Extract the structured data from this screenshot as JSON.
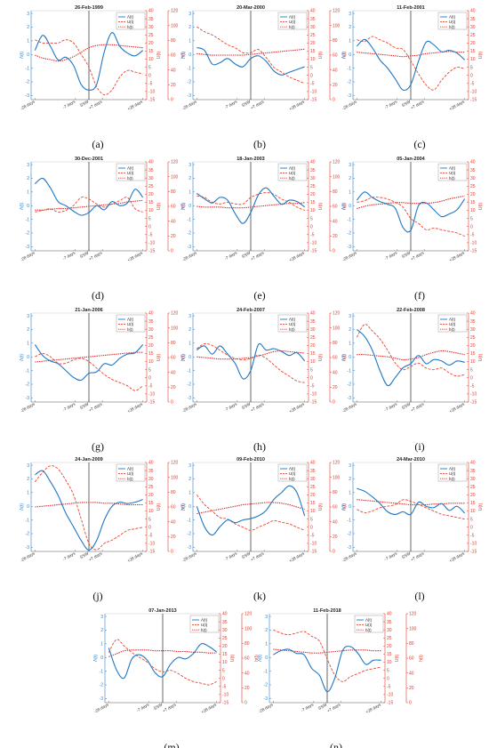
{
  "legend": {
    "a_label": "Λ(t)",
    "u_label": "U(t)",
    "h_label": "h(t)"
  },
  "axes": {
    "left_ylabel": "Λ(t)",
    "right1_ylabel": "U(t)",
    "right2_ylabel": "h(t)",
    "left_ticks": [
      -3,
      -2,
      -1,
      0,
      1,
      2,
      3
    ],
    "right1_ticks": [
      -15,
      -10,
      -5,
      0,
      5,
      10,
      15,
      20,
      25,
      30,
      35,
      40
    ],
    "right2_ticks": [
      0,
      20,
      40,
      60,
      80,
      100,
      120
    ],
    "x_tick_labels": [
      "-28 days",
      "-7 days",
      "SSW",
      "+7 days",
      "+28 days"
    ]
  },
  "colors": {
    "lambda": "#1f77c4",
    "u": "#e8452e",
    "h": "#d62728",
    "event_line": "#444444"
  },
  "chart_data": [
    {
      "type": "line",
      "caption": "(a)",
      "title": "26-Feb-1999",
      "x": [
        -28,
        -24,
        -20,
        -16,
        -12,
        -8,
        -4,
        0,
        4,
        8,
        12,
        16,
        20,
        24,
        28
      ],
      "series": [
        {
          "name": "Λ(t)",
          "values": [
            0.3,
            1.4,
            0.6,
            -0.4,
            -0.2,
            -0.8,
            -2.2,
            -2.6,
            -2.2,
            0.2,
            1.6,
            0.6,
            0.1,
            -0.1,
            0.3
          ]
        },
        {
          "name": "U(t)",
          "values": [
            22,
            20,
            20,
            20,
            22,
            20,
            13,
            5,
            -7,
            -12,
            -9,
            -1,
            3,
            2,
            1
          ]
        },
        {
          "name": "h(t)",
          "values": [
            60,
            56,
            54,
            52,
            54,
            58,
            64,
            70,
            73,
            74,
            74,
            73,
            72,
            71,
            70
          ]
        }
      ]
    },
    {
      "type": "line",
      "caption": "(b)",
      "title": "20-Mar-2000",
      "x": [
        -28,
        -24,
        -20,
        -16,
        -12,
        -8,
        -4,
        0,
        4,
        8,
        12,
        16,
        20,
        24,
        28
      ],
      "series": [
        {
          "name": "Λ(t)",
          "values": [
            0.5,
            0.3,
            -0.7,
            -0.6,
            -0.3,
            -0.7,
            -0.9,
            -0.3,
            -0.1,
            -0.5,
            -1.2,
            -1.5,
            -1.3,
            -1.1,
            -0.9
          ]
        },
        {
          "name": "U(t)",
          "values": [
            30,
            27,
            25,
            22,
            19,
            17,
            14,
            14,
            16,
            11,
            5,
            2,
            -1,
            -3,
            -5
          ]
        },
        {
          "name": "h(t)",
          "values": [
            62,
            61,
            60,
            60,
            60,
            60,
            60,
            61,
            62,
            63,
            64,
            65,
            66,
            67,
            68
          ]
        }
      ]
    },
    {
      "type": "line",
      "caption": "(c)",
      "title": "11-Feb-2001",
      "x": [
        -28,
        -24,
        -20,
        -16,
        -12,
        -8,
        -4,
        0,
        4,
        8,
        12,
        16,
        20,
        24,
        28
      ],
      "series": [
        {
          "name": "Λ(t)",
          "values": [
            0.6,
            1.1,
            0.5,
            -0.4,
            -1.0,
            -1.8,
            -2.6,
            -2.2,
            -0.5,
            0.9,
            0.7,
            0.2,
            0.3,
            0.1,
            -0.4
          ]
        },
        {
          "name": "U(t)",
          "values": [
            22,
            21,
            24,
            22,
            20,
            17,
            16,
            9,
            1,
            -6,
            -9,
            -3,
            2,
            5,
            4
          ]
        },
        {
          "name": "h(t)",
          "values": [
            64,
            63,
            62,
            61,
            60,
            59,
            58,
            59,
            60,
            62,
            63,
            64,
            65,
            64,
            64
          ]
        }
      ]
    },
    {
      "type": "line",
      "caption": "(d)",
      "title": "30-Dec-2001",
      "x": [
        -28,
        -24,
        -20,
        -16,
        -12,
        -8,
        -4,
        0,
        4,
        8,
        12,
        16,
        20,
        24,
        28
      ],
      "series": [
        {
          "name": "Λ(t)",
          "values": [
            1.6,
            2.0,
            1.3,
            0.3,
            0.0,
            -0.4,
            -0.7,
            -0.5,
            0.0,
            -0.3,
            0.3,
            0.0,
            0.2,
            1.2,
            0.6
          ]
        },
        {
          "name": "U(t)",
          "values": [
            9,
            10,
            11,
            9,
            10,
            13,
            18,
            17,
            14,
            12,
            14,
            16,
            18,
            11,
            9
          ]
        },
        {
          "name": "h(t)",
          "values": [
            55,
            55,
            56,
            57,
            57,
            58,
            59,
            60,
            61,
            62,
            63,
            64,
            66,
            67,
            68
          ]
        }
      ]
    },
    {
      "type": "line",
      "caption": "(e)",
      "title": "18-Jan-2003",
      "x": [
        -28,
        -24,
        -20,
        -16,
        -12,
        -8,
        -4,
        0,
        4,
        8,
        12,
        16,
        20,
        24,
        28
      ],
      "series": [
        {
          "name": "Λ(t)",
          "values": [
            0.9,
            0.5,
            0.2,
            0.6,
            0.4,
            -0.6,
            -1.3,
            -0.5,
            0.8,
            1.3,
            0.7,
            0.1,
            0.4,
            0.3,
            -0.1
          ]
        },
        {
          "name": "U(t)",
          "values": [
            19,
            18,
            15,
            14,
            15,
            14,
            14,
            18,
            20,
            21,
            20,
            17,
            15,
            12,
            10
          ]
        },
        {
          "name": "h(t)",
          "values": [
            60,
            59,
            59,
            59,
            58,
            58,
            58,
            59,
            60,
            61,
            62,
            63,
            64,
            64,
            65
          ]
        }
      ]
    },
    {
      "type": "line",
      "caption": "(f)",
      "title": "05-Jan-2004",
      "x": [
        -28,
        -24,
        -20,
        -16,
        -12,
        -8,
        -4,
        0,
        4,
        8,
        12,
        16,
        20,
        24,
        28
      ],
      "series": [
        {
          "name": "Λ(t)",
          "values": [
            0.4,
            1.0,
            0.6,
            0.3,
            0.1,
            -0.2,
            -1.6,
            -1.8,
            0.0,
            0.2,
            -0.3,
            -0.8,
            -0.6,
            -0.3,
            0.5
          ]
        },
        {
          "name": "U(t)",
          "values": [
            15,
            16,
            18,
            18,
            17,
            15,
            12,
            5,
            2,
            -2,
            -1,
            -2,
            -3,
            -4,
            -6
          ]
        },
        {
          "name": "h(t)",
          "values": [
            57,
            60,
            62,
            63,
            64,
            65,
            65,
            64,
            64,
            64,
            65,
            67,
            70,
            72,
            74
          ]
        }
      ]
    },
    {
      "type": "line",
      "caption": "(g)",
      "title": "21-Jan-2006",
      "x": [
        -28,
        -24,
        -20,
        -16,
        -12,
        -8,
        -4,
        0,
        4,
        8,
        12,
        16,
        20,
        24,
        28
      ],
      "series": [
        {
          "name": "Λ(t)",
          "values": [
            0.9,
            0.1,
            -0.3,
            -0.5,
            -1.0,
            -1.5,
            -1.7,
            -1.2,
            -1.1,
            -0.5,
            -0.6,
            -0.1,
            0.2,
            0.3,
            0.9
          ]
        },
        {
          "name": "U(t)",
          "values": [
            13,
            15,
            13,
            9,
            9,
            11,
            12,
            10,
            6,
            2,
            -1,
            -3,
            -5,
            -8,
            -5
          ]
        },
        {
          "name": "h(t)",
          "values": [
            54,
            55,
            56,
            57,
            58,
            59,
            60,
            61,
            62,
            63,
            64,
            65,
            66,
            67,
            67
          ]
        }
      ]
    },
    {
      "type": "line",
      "caption": "(h)",
      "title": "24-Feb-2007",
      "x": [
        -28,
        -24,
        -20,
        -16,
        -12,
        -8,
        -4,
        0,
        4,
        8,
        12,
        16,
        20,
        24,
        28
      ],
      "series": [
        {
          "name": "Λ(t)",
          "values": [
            0.5,
            0.8,
            0.2,
            0.8,
            0.2,
            -0.5,
            -1.6,
            -1.0,
            0.9,
            0.5,
            0.6,
            0.4,
            0.1,
            0.3,
            -0.3
          ]
        },
        {
          "name": "U(t)",
          "values": [
            18,
            21,
            20,
            17,
            14,
            12,
            11,
            12,
            14,
            12,
            8,
            4,
            1,
            -2,
            -3
          ]
        },
        {
          "name": "h(t)",
          "values": [
            61,
            60,
            59,
            58,
            58,
            58,
            59,
            60,
            62,
            65,
            68,
            69,
            68,
            67,
            66
          ]
        }
      ]
    },
    {
      "type": "line",
      "caption": "(i)",
      "title": "22-Feb-2008",
      "x": [
        -28,
        -24,
        -20,
        -16,
        -12,
        -8,
        -4,
        0,
        4,
        8,
        12,
        16,
        20,
        24,
        28
      ],
      "series": [
        {
          "name": "Λ(t)",
          "values": [
            2.0,
            1.5,
            0.5,
            -1.0,
            -2.1,
            -1.5,
            -0.8,
            -0.5,
            0.1,
            -0.5,
            -0.2,
            -0.3,
            -0.6,
            -0.3,
            -0.4
          ]
        },
        {
          "name": "U(t)",
          "values": [
            25,
            33,
            29,
            24,
            17,
            9,
            5,
            7,
            9,
            6,
            5,
            6,
            3,
            1,
            2
          ]
        },
        {
          "name": "h(t)",
          "values": [
            64,
            64,
            63,
            62,
            61,
            59,
            57,
            58,
            60,
            64,
            67,
            69,
            68,
            66,
            64
          ]
        }
      ]
    },
    {
      "type": "line",
      "caption": "(j)",
      "title": "24-Jan-2009",
      "x": [
        -28,
        -24,
        -20,
        -16,
        -12,
        -8,
        -4,
        0,
        4,
        8,
        12,
        16,
        20,
        24,
        28
      ],
      "series": [
        {
          "name": "Λ(t)",
          "values": [
            2.3,
            2.6,
            1.8,
            0.8,
            -0.5,
            -1.5,
            -2.5,
            -3.2,
            -2.5,
            -1.0,
            0.0,
            0.3,
            0.2,
            0.3,
            0.5
          ]
        },
        {
          "name": "U(t)",
          "values": [
            28,
            34,
            38,
            36,
            29,
            20,
            5,
            -10,
            -14,
            -10,
            -8,
            -5,
            -2,
            -1,
            0
          ]
        },
        {
          "name": "h(t)",
          "values": [
            60,
            61,
            62,
            63,
            64,
            65,
            66,
            66,
            66,
            65,
            65,
            64,
            63,
            63,
            63
          ]
        }
      ]
    },
    {
      "type": "line",
      "caption": "(k)",
      "title": "09-Feb-2010",
      "x": [
        -28,
        -24,
        -20,
        -16,
        -12,
        -8,
        -4,
        0,
        4,
        8,
        12,
        16,
        20,
        24,
        28
      ],
      "series": [
        {
          "name": "Λ(t)",
          "values": [
            0.0,
            -1.5,
            -2.1,
            -1.5,
            -1.0,
            -1.2,
            -1.0,
            -0.9,
            -0.7,
            -0.3,
            0.5,
            1.0,
            1.5,
            1.0,
            -0.7
          ]
        },
        {
          "name": "U(t)",
          "values": [
            20,
            14,
            10,
            6,
            5,
            2,
            0,
            -2,
            0,
            2,
            4,
            3,
            2,
            0,
            -2
          ]
        },
        {
          "name": "h(t)",
          "values": [
            51,
            53,
            55,
            57,
            59,
            61,
            63,
            64,
            65,
            66,
            66,
            65,
            63,
            60,
            57
          ]
        }
      ]
    },
    {
      "type": "line",
      "caption": "(l)",
      "title": "24-Mar-2010",
      "x": [
        -28,
        -24,
        -20,
        -16,
        -12,
        -8,
        -4,
        0,
        4,
        8,
        12,
        16,
        20,
        24,
        28
      ],
      "series": [
        {
          "name": "Λ(t)",
          "values": [
            1.3,
            1.1,
            0.7,
            0.2,
            -0.4,
            -0.6,
            -0.4,
            -0.6,
            0.3,
            0.0,
            -0.1,
            0.2,
            -0.3,
            0.0,
            -0.5
          ]
        },
        {
          "name": "U(t)",
          "values": [
            11,
            9,
            10,
            12,
            13,
            14,
            17,
            16,
            14,
            12,
            10,
            8,
            7,
            6,
            5
          ]
        },
        {
          "name": "h(t)",
          "values": [
            70,
            69,
            68,
            67,
            66,
            65,
            64,
            63,
            63,
            63,
            64,
            64,
            65,
            65,
            65
          ]
        }
      ]
    },
    {
      "type": "line",
      "caption": "(m)",
      "title": "07-Jan-2013",
      "x": [
        -28,
        -24,
        -20,
        -16,
        -12,
        -8,
        -4,
        0,
        4,
        8,
        12,
        16,
        20,
        24,
        28
      ],
      "series": [
        {
          "name": "Λ(t)",
          "values": [
            0.7,
            -0.9,
            -1.5,
            -0.1,
            0.2,
            -0.2,
            -1.1,
            -1.4,
            -0.5,
            0.0,
            -0.1,
            0.3,
            1.0,
            0.8,
            0.4
          ]
        },
        {
          "name": "U(t)",
          "values": [
            16,
            24,
            20,
            16,
            13,
            10,
            6,
            4,
            5,
            3,
            0,
            -2,
            -3,
            -4,
            -2
          ]
        },
        {
          "name": "h(t)",
          "values": [
            62,
            66,
            70,
            71,
            71,
            71,
            70,
            70,
            70,
            69,
            69,
            68,
            68,
            67,
            67
          ]
        }
      ]
    },
    {
      "type": "line",
      "caption": "(n)",
      "title": "11-Feb-2018",
      "x": [
        -28,
        -24,
        -20,
        -16,
        -12,
        -8,
        -4,
        0,
        4,
        8,
        12,
        16,
        20,
        24,
        28
      ],
      "series": [
        {
          "name": "Λ(t)",
          "values": [
            0.2,
            0.5,
            0.6,
            0.3,
            0.2,
            -0.8,
            -1.3,
            -2.5,
            -1.5,
            0.5,
            0.8,
            0.3,
            -0.5,
            -0.2,
            -0.2
          ]
        },
        {
          "name": "U(t)",
          "values": [
            30,
            28,
            27,
            28,
            29,
            26,
            23,
            12,
            2,
            -2,
            1,
            3,
            5,
            6,
            7
          ]
        },
        {
          "name": "h(t)",
          "values": [
            72,
            71,
            70,
            69,
            68,
            67,
            67,
            68,
            69,
            70,
            71,
            71,
            71,
            70,
            70
          ]
        }
      ]
    }
  ]
}
